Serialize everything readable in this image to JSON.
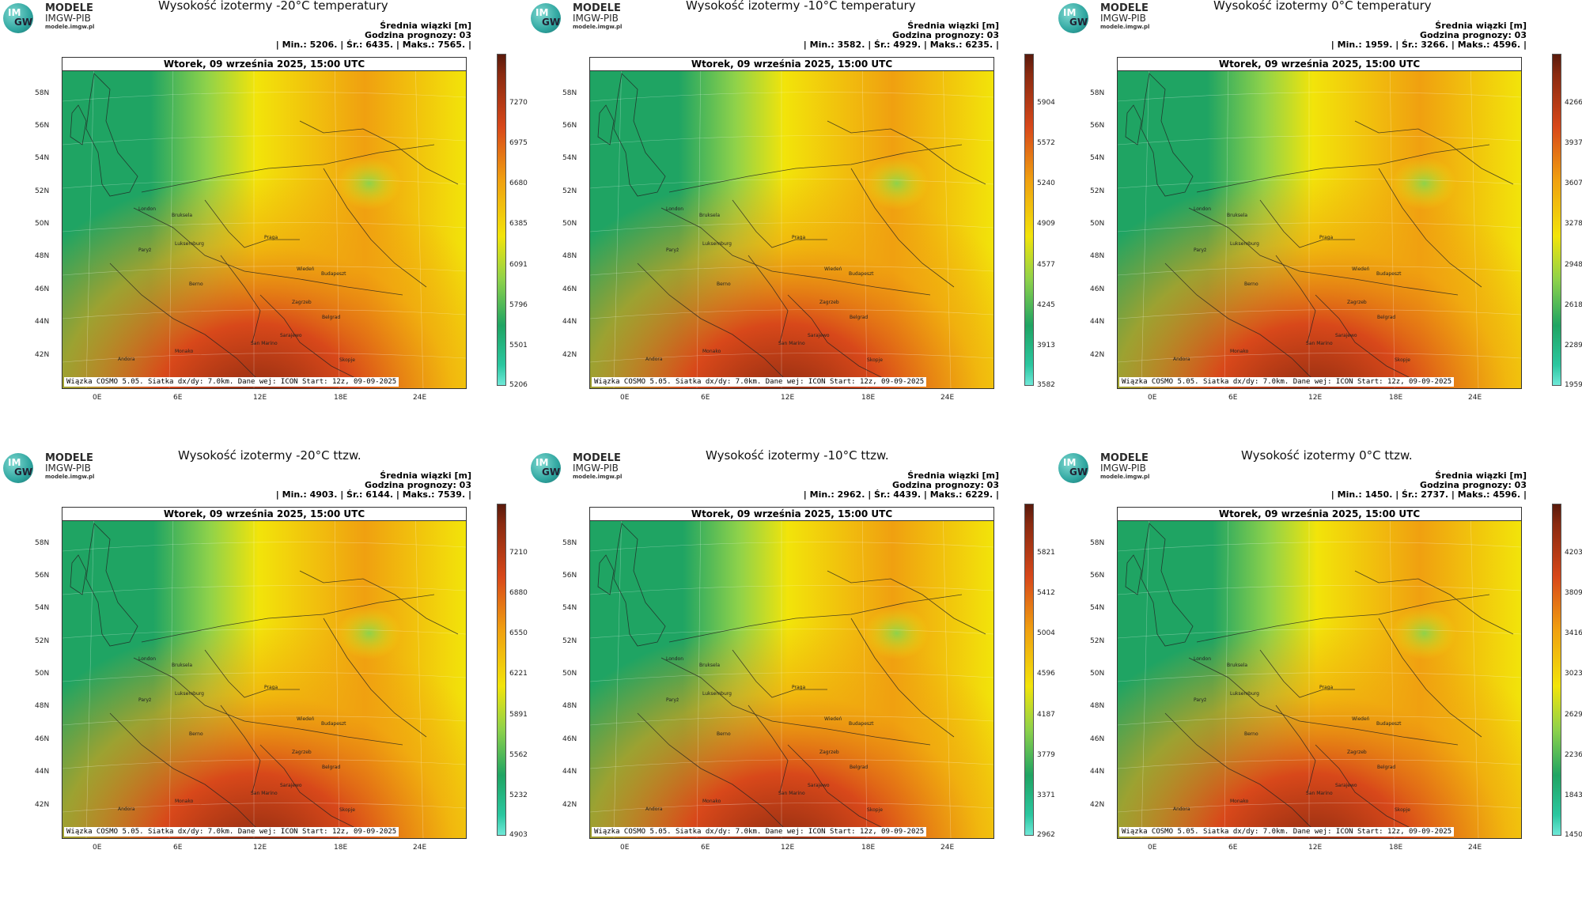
{
  "logo": {
    "line1": "MODELE",
    "line2": "IMGW-PIB",
    "line3": "modele.imgw.pl",
    "mark_top": "IM",
    "mark_bottom": "GW"
  },
  "common": {
    "subtitle": "Średnia wiązki [m]",
    "forecast_hour": "Godzina prognozy: 03",
    "date": "Wtorek, 09 września 2025, 15:00 UTC",
    "footer": "Wiązka COSMO 5.05. Siatka dx/dy: 7.0km. Dane wej: ICON Start: 12z, 09-09-2025",
    "lat_labels": [
      "58N",
      "56N",
      "54N",
      "52N",
      "50N",
      "48N",
      "46N",
      "44N",
      "42N"
    ],
    "lon_labels": [
      "0E",
      "6E",
      "12E",
      "18E",
      "24E"
    ],
    "cities": [
      "London",
      "Bruksela",
      "Paryż",
      "Luksemburg",
      "Praga",
      "Wiedeń",
      "Budapeszt",
      "Berno",
      "Zagrzeb",
      "Belgrad",
      "Monako",
      "San Marino",
      "Sarajewo",
      "Andora",
      "Skopje"
    ]
  },
  "panels": [
    {
      "title": "Wysokość izotermy -20°C temperatury",
      "stats": "| Min.: 5206. | Śr.: 6435. | Maks.: 7565. |",
      "colorbar": [
        "7270",
        "6975",
        "6680",
        "6385",
        "6091",
        "5796",
        "5501",
        "5206"
      ],
      "level": 0.62
    },
    {
      "title": "Wysokość izotermy -10°C temperatury",
      "stats": "| Min.: 3582. | Śr.: 4929. | Maks.: 6235. |",
      "colorbar": [
        "5904",
        "5572",
        "5240",
        "4909",
        "4577",
        "4245",
        "3913",
        "3582"
      ],
      "level": 0.6
    },
    {
      "title": "Wysokość izotermy 0°C temperatury",
      "stats": "| Min.: 1959. | Śr.: 3266. | Maks.: 4596. |",
      "colorbar": [
        "4266",
        "3937",
        "3607",
        "3278",
        "2948",
        "2618",
        "2289",
        "1959"
      ],
      "level": 0.58
    },
    {
      "title": "Wysokość izotermy -20°C ttzw.",
      "stats": "| Min.: 4903. | Śr.: 6144. | Maks.: 7539. |",
      "colorbar": [
        "7210",
        "6880",
        "6550",
        "6221",
        "5891",
        "5562",
        "5232",
        "4903"
      ],
      "level": 0.55
    },
    {
      "title": "Wysokość izotermy -10°C ttzw.",
      "stats": "| Min.: 2962. | Śr.: 4439. | Maks.: 6229. |",
      "colorbar": [
        "5821",
        "5412",
        "5004",
        "4596",
        "4187",
        "3779",
        "3371",
        "2962"
      ],
      "level": 0.5
    },
    {
      "title": "Wysokość izotermy 0°C ttzw.",
      "stats": "| Min.: 1450. | Śr.: 2737. | Maks.: 4596. |",
      "colorbar": [
        "4203",
        "3809",
        "3416",
        "3023",
        "2629",
        "2236",
        "1843",
        "1450"
      ],
      "level": 0.45
    }
  ],
  "colors": {
    "green": "#1fa463",
    "lightgreen": "#8fd24a",
    "yellow": "#f2e40a",
    "orange": "#f0a010",
    "red": "#d8481a",
    "darkred": "#8a2a10"
  }
}
